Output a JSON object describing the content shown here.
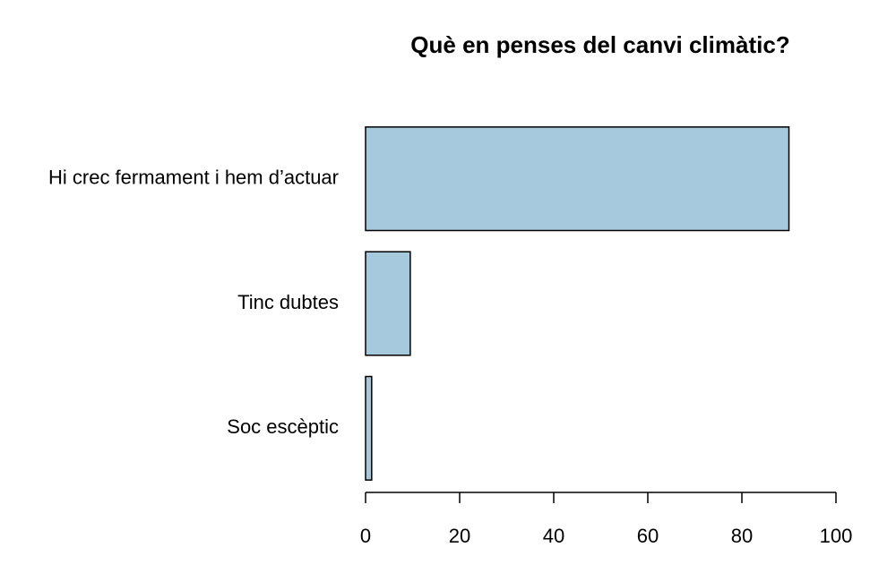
{
  "chart_data": {
    "type": "bar",
    "orientation": "horizontal",
    "title": "Què en penses del canvi climàtic?",
    "categories": [
      "Hi crec fermament i hem d’actuar",
      "Tinc dubtes",
      "Soc escèptic"
    ],
    "values": [
      90,
      9.5,
      1.3
    ],
    "color": "#a6c9de",
    "xlim": [
      0,
      100
    ],
    "xticks": [
      0,
      20,
      40,
      60,
      80,
      100
    ],
    "grid": false
  }
}
